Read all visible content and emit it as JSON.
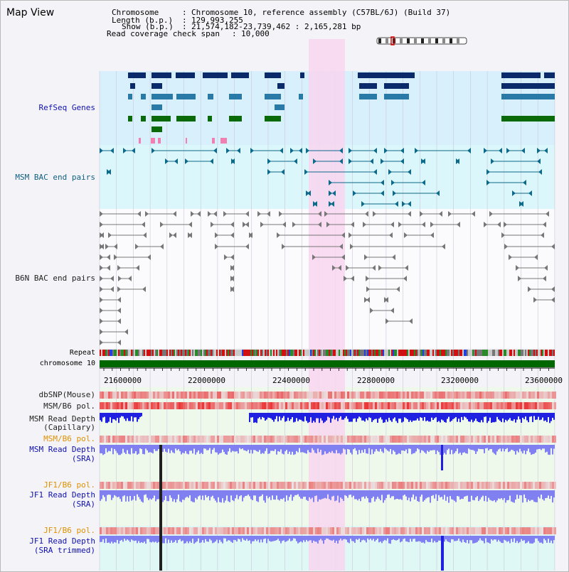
{
  "header": {
    "title": "Map View",
    "chromosome_label": "Chromosome",
    "chromosome_value": "Chromosome 10, reference assembly (C57BL/6J) (Build 37)",
    "length_label": "Length (b.p.)",
    "length_value": "129,993,255",
    "show_label": "Show (b.p.)",
    "show_value": "21,574,182-23,739,462 : 2,165,281 bp",
    "coverage_label": "Read coverage check span",
    "coverage_value": "10,000"
  },
  "tracks": {
    "refseq": "RefSeq Genes",
    "msm_bac": "MSM BAC end pairs",
    "b6n_bac": "B6N BAC end pairs",
    "repeat": "Repeat",
    "chromosome": "chromosome 10",
    "dbsnp": "dbSNP(Mouse)",
    "msm_b6_pol": "MSM/B6 pol.",
    "msm_depth_cap_1": "MSM Read Depth",
    "msm_depth_cap_2": "(Capillary)",
    "msm_b6_pol_2": "MSM/B6 pol.",
    "msm_depth_sra_1": "MSM Read Depth",
    "msm_depth_sra_2": "(SRA)",
    "jf1_b6_pol": "JF1/B6 pol.",
    "jf1_depth_sra_1": "JF1 Read Depth",
    "jf1_depth_sra_2": "(SRA)",
    "jf1_b6_pol_2": "JF1/B6 pol.",
    "jf1_depth_trim_1": "JF1 Read Depth",
    "jf1_depth_trim_2": "(SRA trimmed)"
  },
  "axis": {
    "ticks": [
      "21600000",
      "22000000",
      "22400000",
      "22800000",
      "23200000",
      "23600000"
    ]
  },
  "colors": {
    "refseq_bg": "#d8f0fc",
    "msm_bg": "#dcf7fb",
    "highlight": "#f8d6f0",
    "chromosome_bar": "#006600",
    "depth_blue": "#2020e0",
    "depth_light": "#8080f0",
    "pol_red": "#e84040"
  }
}
